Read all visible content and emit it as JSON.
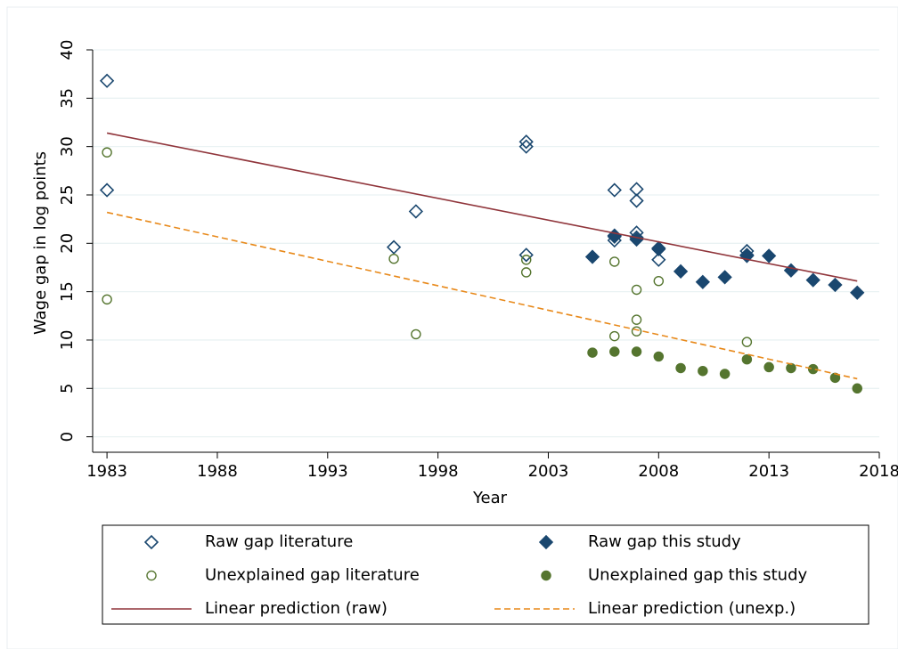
{
  "chart_data": {
    "type": "scatter",
    "y_label": "Wage gap in log points",
    "x_label": "Year",
    "xlim": [
      1982.35,
      2018
    ],
    "xticks": [
      1983,
      1988,
      1993,
      1998,
      2003,
      2008,
      2013,
      2018
    ],
    "ylim": [
      -1.6,
      40
    ],
    "yticks": [
      0,
      5,
      10,
      15,
      20,
      25,
      30,
      35,
      40
    ],
    "grid": true,
    "series": [
      {
        "name": "Raw gap literature",
        "color": "#1a476f",
        "marker": "diamond",
        "filled": false,
        "x": [
          1983,
          1983,
          1996,
          1997,
          2002,
          2002,
          2002,
          2006,
          2006,
          2006,
          2007,
          2007,
          2007,
          2007,
          2008,
          2008,
          2012,
          2012
        ],
        "values": [
          36.8,
          25.5,
          19.6,
          23.3,
          30.5,
          30.0,
          18.8,
          25.5,
          20.7,
          20.3,
          25.6,
          24.4,
          21.1,
          20.6,
          18.3,
          19.5,
          19.2,
          18.8
        ]
      },
      {
        "name": "Raw gap this study",
        "color": "#1a476f",
        "marker": "diamond",
        "filled": true,
        "x": [
          2005,
          2006,
          2007,
          2008,
          2009,
          2010,
          2011,
          2012,
          2013,
          2014,
          2015,
          2016,
          2017
        ],
        "values": [
          18.6,
          20.8,
          20.4,
          19.4,
          17.1,
          16.0,
          16.5,
          18.7,
          18.7,
          17.2,
          16.2,
          15.7,
          14.9
        ]
      },
      {
        "name": "Unexplained gap literature",
        "color": "#55752f",
        "marker": "circle",
        "filled": false,
        "x": [
          1983,
          1983,
          1996,
          1997,
          2002,
          2002,
          2006,
          2006,
          2007,
          2007,
          2007,
          2008,
          2012
        ],
        "values": [
          29.4,
          14.2,
          18.4,
          10.6,
          18.3,
          17.0,
          18.1,
          10.4,
          15.2,
          12.1,
          10.9,
          16.1,
          9.8
        ]
      },
      {
        "name": "Unexplained gap this study",
        "color": "#55752f",
        "marker": "circle",
        "filled": true,
        "x": [
          2005,
          2006,
          2007,
          2008,
          2009,
          2010,
          2011,
          2012,
          2013,
          2014,
          2015,
          2016,
          2017
        ],
        "values": [
          8.7,
          8.8,
          8.8,
          8.3,
          7.1,
          6.8,
          6.5,
          8.0,
          7.2,
          7.1,
          7.0,
          6.1,
          5.0
        ]
      },
      {
        "name": "Linear prediction (raw)",
        "color": "#90353b",
        "marker": "line",
        "dashed": false,
        "x": [
          1983,
          2017
        ],
        "values": [
          31.4,
          16.1
        ]
      },
      {
        "name": "Linear prediction (unexp.)",
        "color": "#e8891a",
        "marker": "line",
        "dashed": true,
        "x": [
          1983,
          2017
        ],
        "values": [
          23.2,
          6.0
        ]
      }
    ]
  }
}
